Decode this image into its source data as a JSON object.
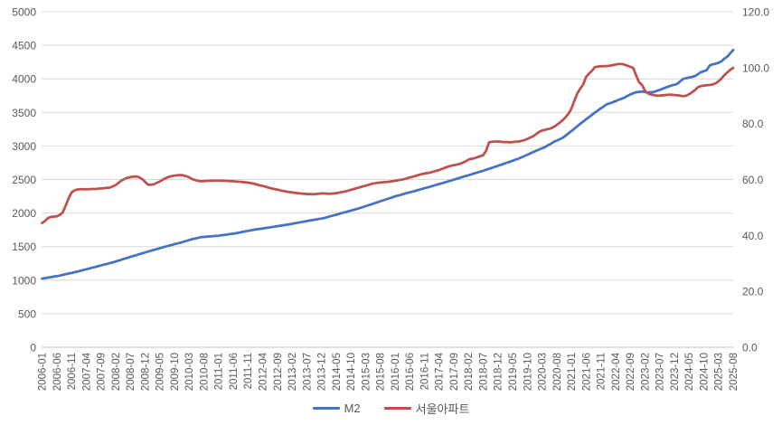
{
  "legend": {
    "series1_label": "M2",
    "series2_label": "서울아파트"
  },
  "colors": {
    "m2_line": "#4472C4",
    "seoul_line": "#C0504D",
    "gridline": "#D9D9D9",
    "axis_line": "#BFBFBF",
    "axis_text": "#595959",
    "background": "#FFFFFF"
  },
  "chart_data": {
    "type": "line",
    "title": "",
    "grid": "horizontal",
    "legend_position": "bottom",
    "x_start": "2006-01",
    "x_end": "2025-08",
    "x_months_per_tick": 5,
    "x_tick_labels": [
      "2006-01",
      "2006-06",
      "2006-11",
      "2007-04",
      "2007-09",
      "2008-02",
      "2008-07",
      "2008-12",
      "2009-05",
      "2009-10",
      "2010-03",
      "2010-08",
      "2011-01",
      "2011-06",
      "2011-11",
      "2012-04",
      "2012-09",
      "2013-02",
      "2013-07",
      "2013-12",
      "2014-05",
      "2014-10",
      "2015-03",
      "2015-08",
      "2016-01",
      "2016-06",
      "2016-11",
      "2017-04",
      "2017-09",
      "2018-02",
      "2018-07",
      "2018-12",
      "2019-05",
      "2019-10",
      "2020-03",
      "2020-08",
      "2021-01",
      "2021-06",
      "2021-11",
      "2022-04",
      "2022-09",
      "2023-02",
      "2023-07",
      "2023-12",
      "2024-05",
      "2024-10",
      "2025-03",
      "2025-08"
    ],
    "left_axis": {
      "min": 0,
      "max": 5000,
      "step": 500,
      "tick_labels": [
        "0",
        "500",
        "1000",
        "1500",
        "2000",
        "2500",
        "3000",
        "3500",
        "4000",
        "4500",
        "5000"
      ]
    },
    "right_axis": {
      "min": 0,
      "max": 120,
      "step": 20,
      "tick_labels": [
        "0.0",
        "20.0",
        "40.0",
        "60.0",
        "80.0",
        "100.0",
        "120.0"
      ]
    },
    "series": [
      {
        "name": "M2",
        "axis": "left",
        "color": "#4472C4",
        "values": [
          1022,
          1030,
          1038,
          1045,
          1053,
          1061,
          1068,
          1078,
          1088,
          1098,
          1107,
          1117,
          1127,
          1139,
          1150,
          1162,
          1173,
          1185,
          1196,
          1207,
          1219,
          1230,
          1241,
          1253,
          1264,
          1278,
          1291,
          1305,
          1319,
          1332,
          1346,
          1359,
          1372,
          1385,
          1399,
          1412,
          1425,
          1438,
          1450,
          1463,
          1475,
          1488,
          1500,
          1512,
          1523,
          1535,
          1547,
          1558,
          1570,
          1583,
          1597,
          1610,
          1620,
          1630,
          1640,
          1644,
          1648,
          1652,
          1655,
          1659,
          1662,
          1668,
          1674,
          1680,
          1687,
          1693,
          1700,
          1709,
          1717,
          1726,
          1734,
          1743,
          1751,
          1757,
          1764,
          1770,
          1777,
          1783,
          1790,
          1797,
          1804,
          1811,
          1818,
          1825,
          1832,
          1840,
          1848,
          1856,
          1864,
          1872,
          1880,
          1888,
          1895,
          1903,
          1911,
          1918,
          1926,
          1938,
          1951,
          1963,
          1975,
          1988,
          2000,
          2012,
          2024,
          2037,
          2049,
          2061,
          2073,
          2088,
          2102,
          2117,
          2131,
          2146,
          2160,
          2175,
          2189,
          2204,
          2219,
          2233,
          2248,
          2260,
          2272,
          2284,
          2296,
          2308,
          2320,
          2332,
          2344,
          2357,
          2369,
          2381,
          2393,
          2406,
          2419,
          2432,
          2444,
          2457,
          2470,
          2484,
          2497,
          2511,
          2524,
          2538,
          2551,
          2564,
          2577,
          2591,
          2604,
          2617,
          2630,
          2645,
          2659,
          2674,
          2689,
          2703,
          2718,
          2733,
          2749,
          2764,
          2779,
          2795,
          2810,
          2830,
          2849,
          2869,
          2889,
          2908,
          2928,
          2946,
          2965,
          2983,
          3009,
          3034,
          3060,
          3080,
          3100,
          3120,
          3154,
          3188,
          3222,
          3258,
          3294,
          3330,
          3363,
          3397,
          3430,
          3463,
          3497,
          3530,
          3560,
          3590,
          3620,
          3635,
          3650,
          3668,
          3686,
          3703,
          3720,
          3744,
          3768,
          3784,
          3800,
          3806,
          3812,
          3803,
          3795,
          3800,
          3805,
          3820,
          3835,
          3852,
          3870,
          3885,
          3900,
          3912,
          3925,
          3962,
          4000,
          4010,
          4020,
          4030,
          4040,
          4070,
          4100,
          4115,
          4130,
          4200,
          4215,
          4225,
          4240,
          4260,
          4300,
          4330,
          4380,
          4430
        ]
      },
      {
        "name": "서울아파트",
        "axis": "right",
        "color": "#C0504D",
        "values": [
          44.4,
          45.2,
          46.2,
          46.6,
          46.7,
          46.8,
          47.3,
          48.2,
          50.5,
          53.2,
          55.3,
          56.1,
          56.4,
          56.5,
          56.5,
          56.5,
          56.5,
          56.6,
          56.6,
          56.7,
          56.8,
          56.9,
          57.0,
          57.1,
          57.5,
          58.0,
          58.8,
          59.6,
          60.2,
          60.6,
          60.8,
          61.0,
          61.1,
          60.8,
          60.2,
          59.2,
          58.2,
          58.1,
          58.3,
          58.8,
          59.3,
          59.9,
          60.5,
          60.9,
          61.2,
          61.4,
          61.5,
          61.6,
          61.5,
          61.2,
          60.8,
          60.2,
          59.8,
          59.5,
          59.4,
          59.4,
          59.5,
          59.5,
          59.6,
          59.6,
          59.6,
          59.6,
          59.5,
          59.5,
          59.4,
          59.4,
          59.3,
          59.2,
          59.1,
          59.0,
          58.9,
          58.7,
          58.5,
          58.2,
          57.9,
          57.7,
          57.4,
          57.1,
          56.8,
          56.6,
          56.4,
          56.1,
          55.9,
          55.7,
          55.5,
          55.4,
          55.2,
          55.1,
          55.0,
          54.9,
          54.8,
          54.8,
          54.7,
          54.8,
          54.9,
          55.0,
          55.0,
          54.9,
          54.9,
          55.0,
          55.1,
          55.3,
          55.5,
          55.7,
          56.0,
          56.3,
          56.6,
          56.9,
          57.2,
          57.5,
          57.8,
          58.1,
          58.4,
          58.6,
          58.8,
          58.9,
          59.0,
          59.1,
          59.2,
          59.4,
          59.5,
          59.7,
          59.9,
          60.1,
          60.4,
          60.7,
          61.0,
          61.3,
          61.6,
          61.9,
          62.1,
          62.3,
          62.5,
          62.8,
          63.1,
          63.4,
          63.8,
          64.2,
          64.6,
          64.9,
          65.1,
          65.3,
          65.6,
          66.0,
          66.5,
          67.1,
          67.4,
          67.6,
          68.0,
          68.3,
          68.7,
          70.3,
          73.3,
          73.5,
          73.6,
          73.6,
          73.5,
          73.4,
          73.4,
          73.3,
          73.4,
          73.5,
          73.6,
          73.8,
          74.1,
          74.5,
          75.0,
          75.5,
          76.2,
          77.0,
          77.5,
          77.8,
          78.0,
          78.3,
          78.8,
          79.5,
          80.3,
          81.2,
          82.3,
          83.5,
          85.4,
          88.1,
          90.8,
          92.5,
          94.0,
          96.7,
          97.9,
          98.9,
          100.2,
          100.4,
          100.5,
          100.5,
          100.6,
          100.7,
          100.9,
          101.1,
          101.3,
          101.3,
          101.1,
          100.7,
          100.3,
          99.9,
          97.3,
          94.8,
          93.8,
          91.8,
          90.8,
          90.4,
          90.2,
          90.0,
          90.0,
          90.1,
          90.2,
          90.3,
          90.3,
          90.2,
          90.1,
          90.0,
          89.8,
          90.0,
          90.5,
          91.2,
          92.0,
          93.0,
          93.4,
          93.6,
          93.7,
          93.8,
          94.0,
          94.4,
          95.1,
          96.1,
          97.3,
          98.3,
          99.2,
          99.9
        ]
      }
    ]
  }
}
